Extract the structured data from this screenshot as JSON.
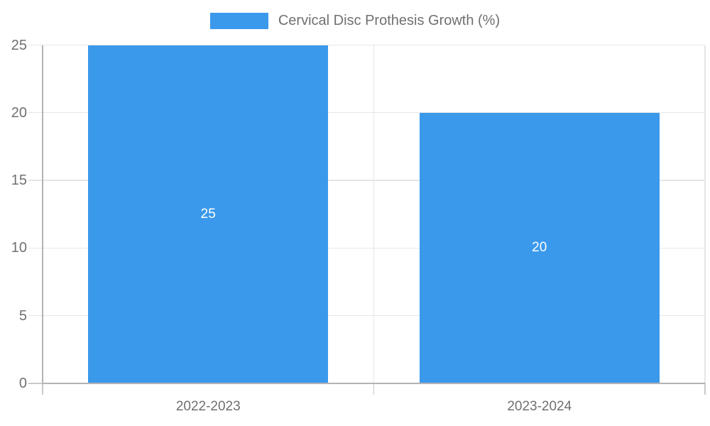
{
  "chart_data": {
    "type": "bar",
    "categories": [
      "2022-2023",
      "2023-2024"
    ],
    "values": [
      25,
      20
    ],
    "data_labels": [
      "25",
      "20"
    ],
    "legend_label": "Cervical Disc Prothesis Growth (%)",
    "title": "",
    "xlabel": "",
    "ylabel": "",
    "ylim": [
      0,
      25
    ],
    "yticks": [
      0,
      5,
      10,
      15,
      20,
      25
    ],
    "grid": true,
    "legend_position": "top",
    "colors": {
      "bar": "#3B99EC",
      "text": "#707070",
      "gridline": "#E6E6E6",
      "axis": "#B3B3B3",
      "tick": "#C9C9C9",
      "data_label_text": "#FFFFFF",
      "background": "#FFFFFF"
    }
  }
}
